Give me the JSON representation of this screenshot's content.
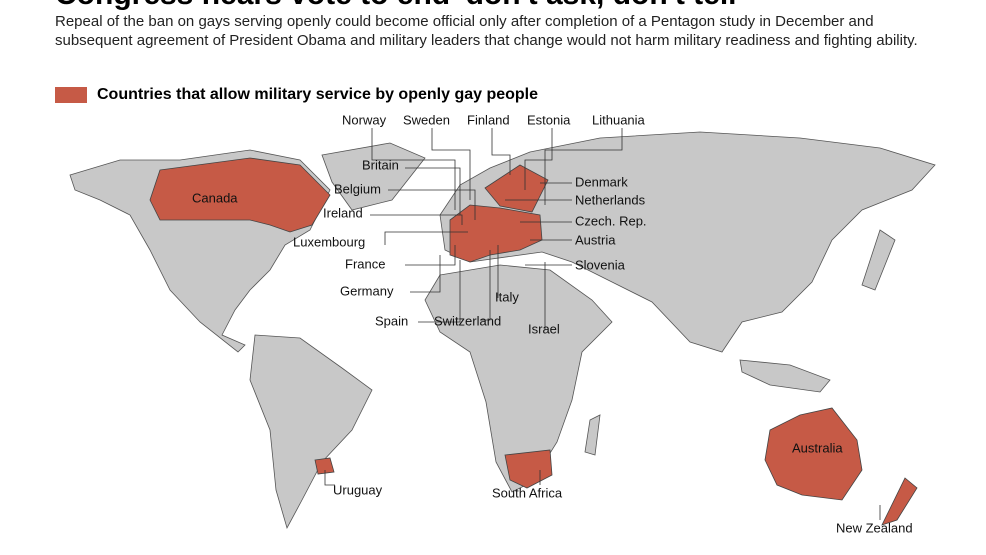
{
  "header": {
    "title": "Congress nears vote to end 'don't ask, don't tell'",
    "description": "Repeal of the ban on gays serving openly could become official only after completion of a Pentagon study in December and subsequent agreement of President Obama and military leaders that change would not harm military readiness and fighting ability."
  },
  "legend": {
    "label": "Countries that allow military service by openly gay people"
  },
  "map": {
    "labels": [
      "Norway",
      "Sweden",
      "Finland",
      "Estonia",
      "Lithuania",
      "Britain",
      "Belgium",
      "Ireland",
      "Luxembourg",
      "France",
      "Germany",
      "Spain",
      "Switzerland",
      "Italy",
      "Israel",
      "Denmark",
      "Netherlands",
      "Czech. Rep.",
      "Austria",
      "Slovenia",
      "Canada",
      "Uruguay",
      "South Africa",
      "Australia",
      "New Zealand"
    ]
  }
}
